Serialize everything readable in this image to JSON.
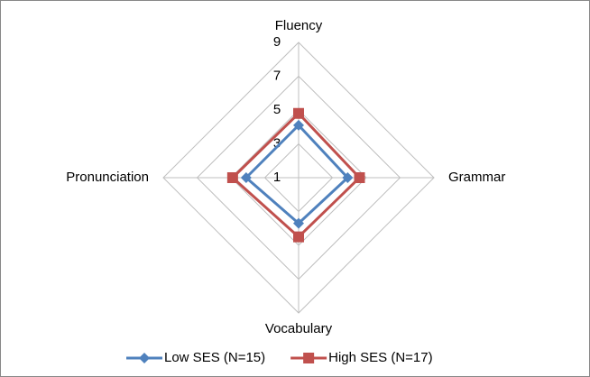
{
  "chart_data": {
    "type": "radar",
    "categories": [
      "Fluency",
      "Grammar",
      "Vocabulary",
      "Pronunciation"
    ],
    "series": [
      {
        "name": "Low SES (N=15)",
        "color": "#4f81bd",
        "marker": "diamond",
        "values": [
          4.1,
          3.9,
          3.7,
          4.1
        ]
      },
      {
        "name": "High SES (N=17)",
        "color": "#c0504d",
        "marker": "square",
        "values": [
          4.8,
          4.6,
          4.5,
          4.9
        ]
      }
    ],
    "rlim": [
      1,
      9
    ],
    "rticks": [
      1,
      3,
      5,
      7,
      9
    ],
    "grid": true,
    "legend": "bottom"
  }
}
